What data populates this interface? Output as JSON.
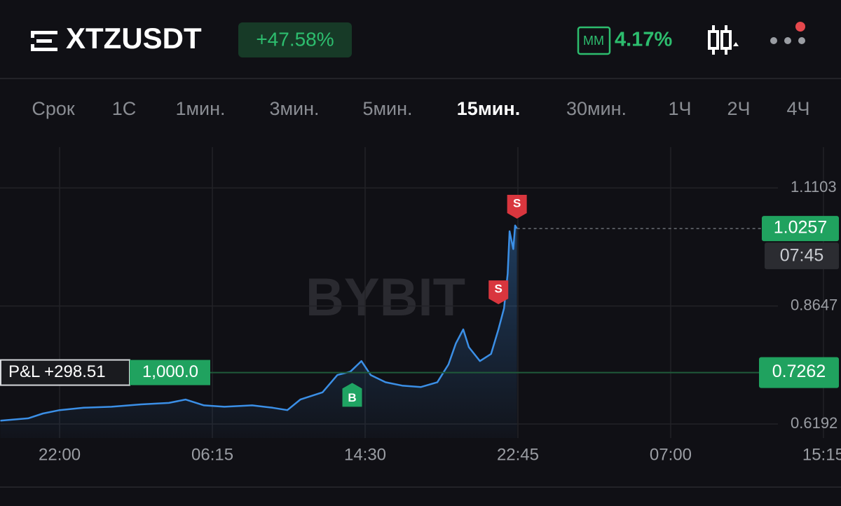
{
  "header": {
    "symbol": "XTZUSDT",
    "change": "+47.58%",
    "mm_badge": "MM",
    "mm_rate": "4.17%"
  },
  "timeframes": {
    "items": [
      "Срок",
      "1С",
      "1мин.",
      "3мин.",
      "5мин.",
      "15мин.",
      "30мин.",
      "1Ч",
      "2Ч",
      "4Ч"
    ],
    "active": 5
  },
  "chart_data": {
    "type": "line",
    "x": [
      -3.2,
      -1.7,
      -0.9,
      0,
      1.3,
      2.8,
      4.4,
      5.9,
      6.8,
      7.8,
      8.9,
      10.4,
      11.5,
      12.3,
      13.0,
      14.2,
      15.0,
      15.7,
      16.3,
      16.8,
      17.6,
      18.5,
      19.5,
      20.4,
      21.0,
      21.4,
      21.8,
      22.1,
      22.7,
      23.3,
      23.7,
      24.0,
      24.2,
      24.3,
      24.5,
      24.6,
      24.7
    ],
    "series": [
      {
        "color": "#3b8fe6",
        "values": [
          0.626,
          0.631,
          0.641,
          0.648,
          0.653,
          0.655,
          0.66,
          0.663,
          0.67,
          0.658,
          0.655,
          0.658,
          0.653,
          0.648,
          0.67,
          0.685,
          0.721,
          0.728,
          0.75,
          0.721,
          0.706,
          0.699,
          0.696,
          0.706,
          0.743,
          0.787,
          0.816,
          0.779,
          0.75,
          0.765,
          0.816,
          0.86,
          0.932,
          1.02,
          0.983,
          1.032,
          1.026
        ]
      }
    ],
    "xlim": [
      -3.22,
      42.2
    ],
    "ylim": [
      0.59,
      1.195
    ],
    "xticks": [
      {
        "value": 0,
        "label": "22:00"
      },
      {
        "value": 8.25,
        "label": "06:15"
      },
      {
        "value": 16.5,
        "label": "14:30"
      },
      {
        "value": 24.75,
        "label": "22:45"
      },
      {
        "value": 33,
        "label": "07:00"
      },
      {
        "value": 41.25,
        "label": "15:15"
      }
    ],
    "yticks": [
      1.1103,
      0.8647,
      0.6192
    ],
    "grid": true
  },
  "last_price": 1.0257,
  "countdown": "07:45",
  "entry_price": 0.7262,
  "position": {
    "pnl": "P&L +298.51",
    "size": "1,000.0"
  },
  "trades": [
    {
      "side": "B",
      "x": 15.8,
      "y": 0.677
    },
    {
      "side": "S",
      "x": 24.7,
      "y": 1.074
    },
    {
      "side": "S",
      "x": 23.7,
      "y": 0.896
    }
  ],
  "watermark": "BYBIT"
}
